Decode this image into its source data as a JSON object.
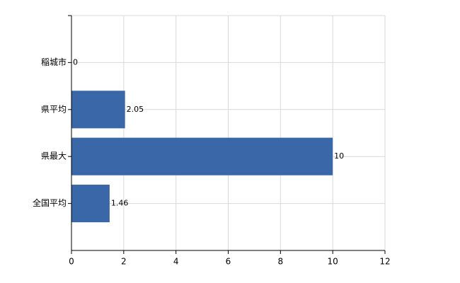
{
  "chart_data": {
    "type": "hbar",
    "categories": [
      "稲城市",
      "県平均",
      "県最大",
      "全国平均"
    ],
    "values": [
      0,
      2.05,
      10,
      1.46
    ],
    "color": "#3a67a8",
    "xlim": [
      0,
      12
    ],
    "xticks": [
      0,
      2,
      4,
      6,
      8,
      10,
      12
    ],
    "grid": true
  }
}
